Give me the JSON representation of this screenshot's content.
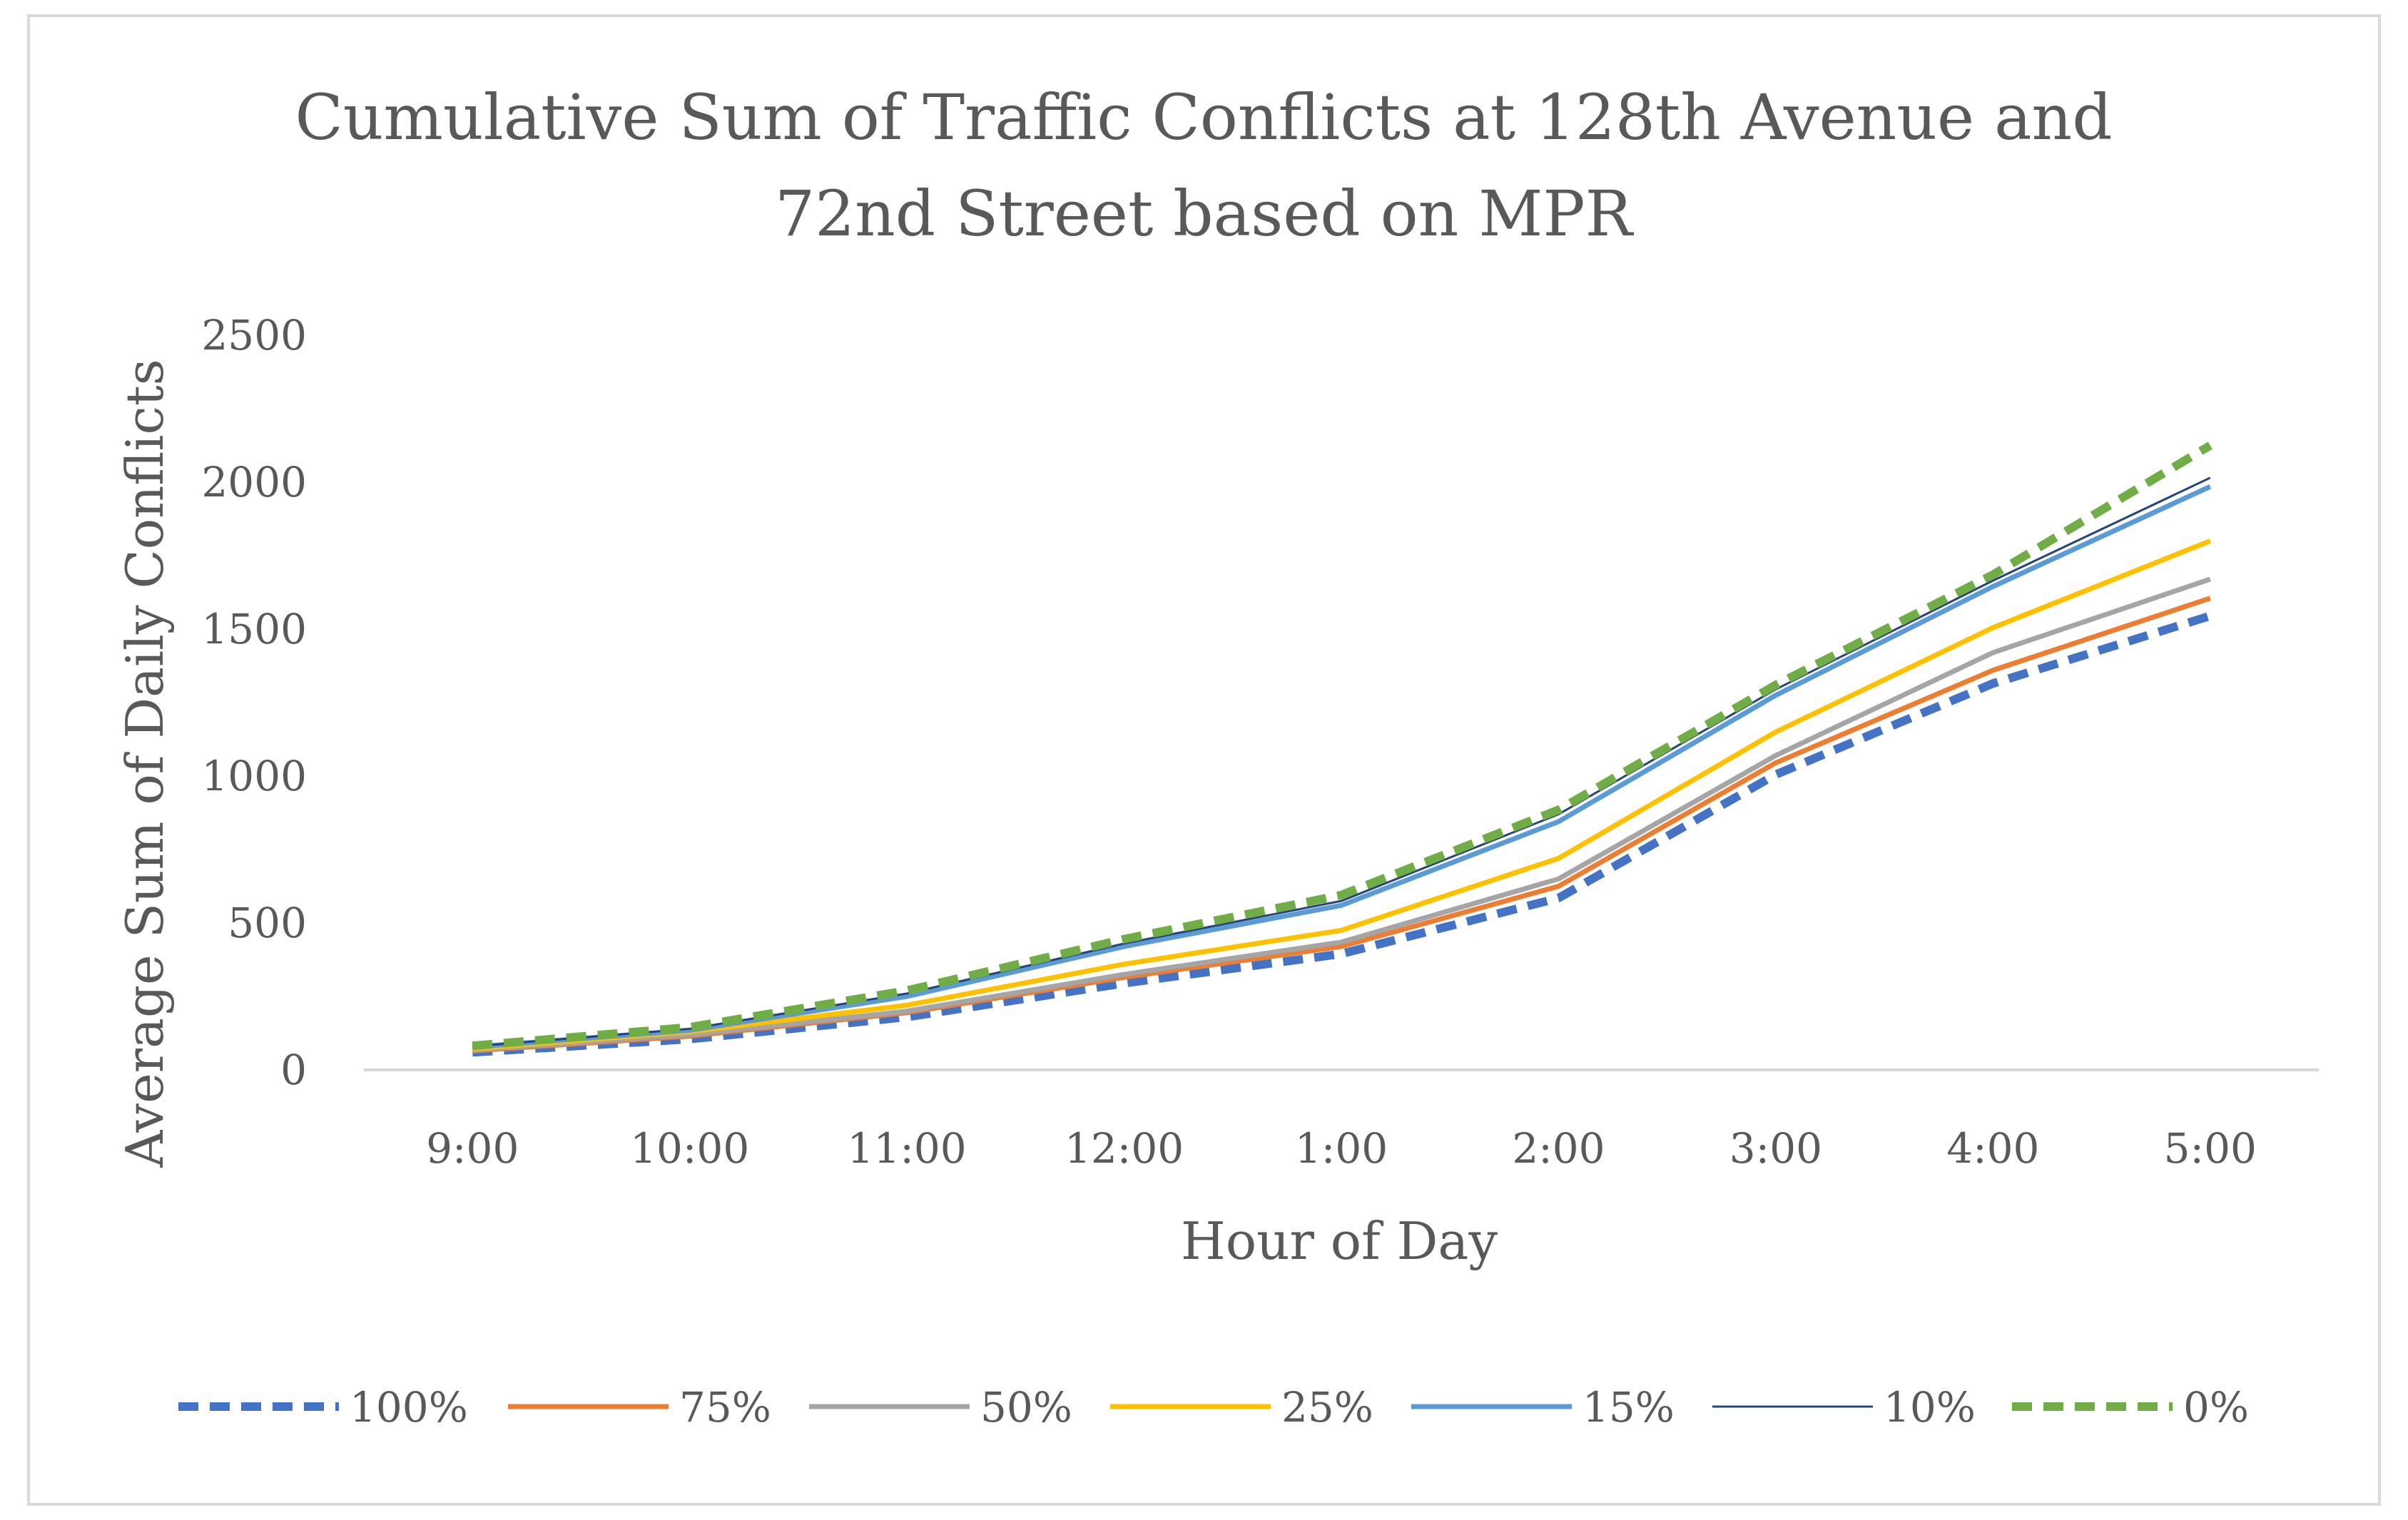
{
  "chart_data": {
    "type": "line",
    "title": "Cumulative Sum of Traffic Conflicts at 128th Avenue and 72nd Street based on MPR",
    "title_lines": [
      "Cumulative Sum of Traffic Conflicts at 128th Avenue and",
      "72nd Street based on MPR"
    ],
    "xlabel": "Hour of Day",
    "ylabel": "Average Sum of Daily Conflicts",
    "categories": [
      "9:00",
      "10:00",
      "11:00",
      "12:00",
      "1:00",
      "2:00",
      "3:00",
      "4:00",
      "5:00"
    ],
    "ylim": [
      0,
      2500
    ],
    "yticks": [
      "0",
      "500",
      "1000",
      "1500",
      "2000",
      "2500"
    ],
    "grid": false,
    "legend_position": "bottom",
    "series": [
      {
        "name": "100%",
        "color": "#4472C4",
        "style": "dashed",
        "width": "thick",
        "values": [
          60,
          105,
          180,
          295,
          395,
          585,
          1005,
          1315,
          1545
        ]
      },
      {
        "name": "75%",
        "color": "#ED7D31",
        "style": "solid",
        "width": "normal",
        "values": [
          65,
          115,
          195,
          315,
          420,
          625,
          1045,
          1360,
          1605
        ]
      },
      {
        "name": "50%",
        "color": "#A5A5A5",
        "style": "solid",
        "width": "normal",
        "values": [
          68,
          120,
          200,
          325,
          435,
          650,
          1070,
          1420,
          1670
        ]
      },
      {
        "name": "25%",
        "color": "#FFC000",
        "style": "solid",
        "width": "normal",
        "values": [
          72,
          130,
          220,
          360,
          475,
          720,
          1150,
          1505,
          1800
        ]
      },
      {
        "name": "15%",
        "color": "#5B9BD5",
        "style": "solid",
        "width": "normal",
        "values": [
          78,
          135,
          250,
          420,
          560,
          845,
          1275,
          1645,
          1985
        ]
      },
      {
        "name": "10%",
        "color": "#264478",
        "style": "solid",
        "width": "thin",
        "values": [
          80,
          140,
          260,
          430,
          575,
          870,
          1295,
          1665,
          2015
        ]
      },
      {
        "name": "0%",
        "color": "#70AD47",
        "style": "dashed",
        "width": "thick",
        "values": [
          82,
          145,
          270,
          445,
          595,
          885,
          1310,
          1685,
          2125
        ]
      }
    ]
  }
}
